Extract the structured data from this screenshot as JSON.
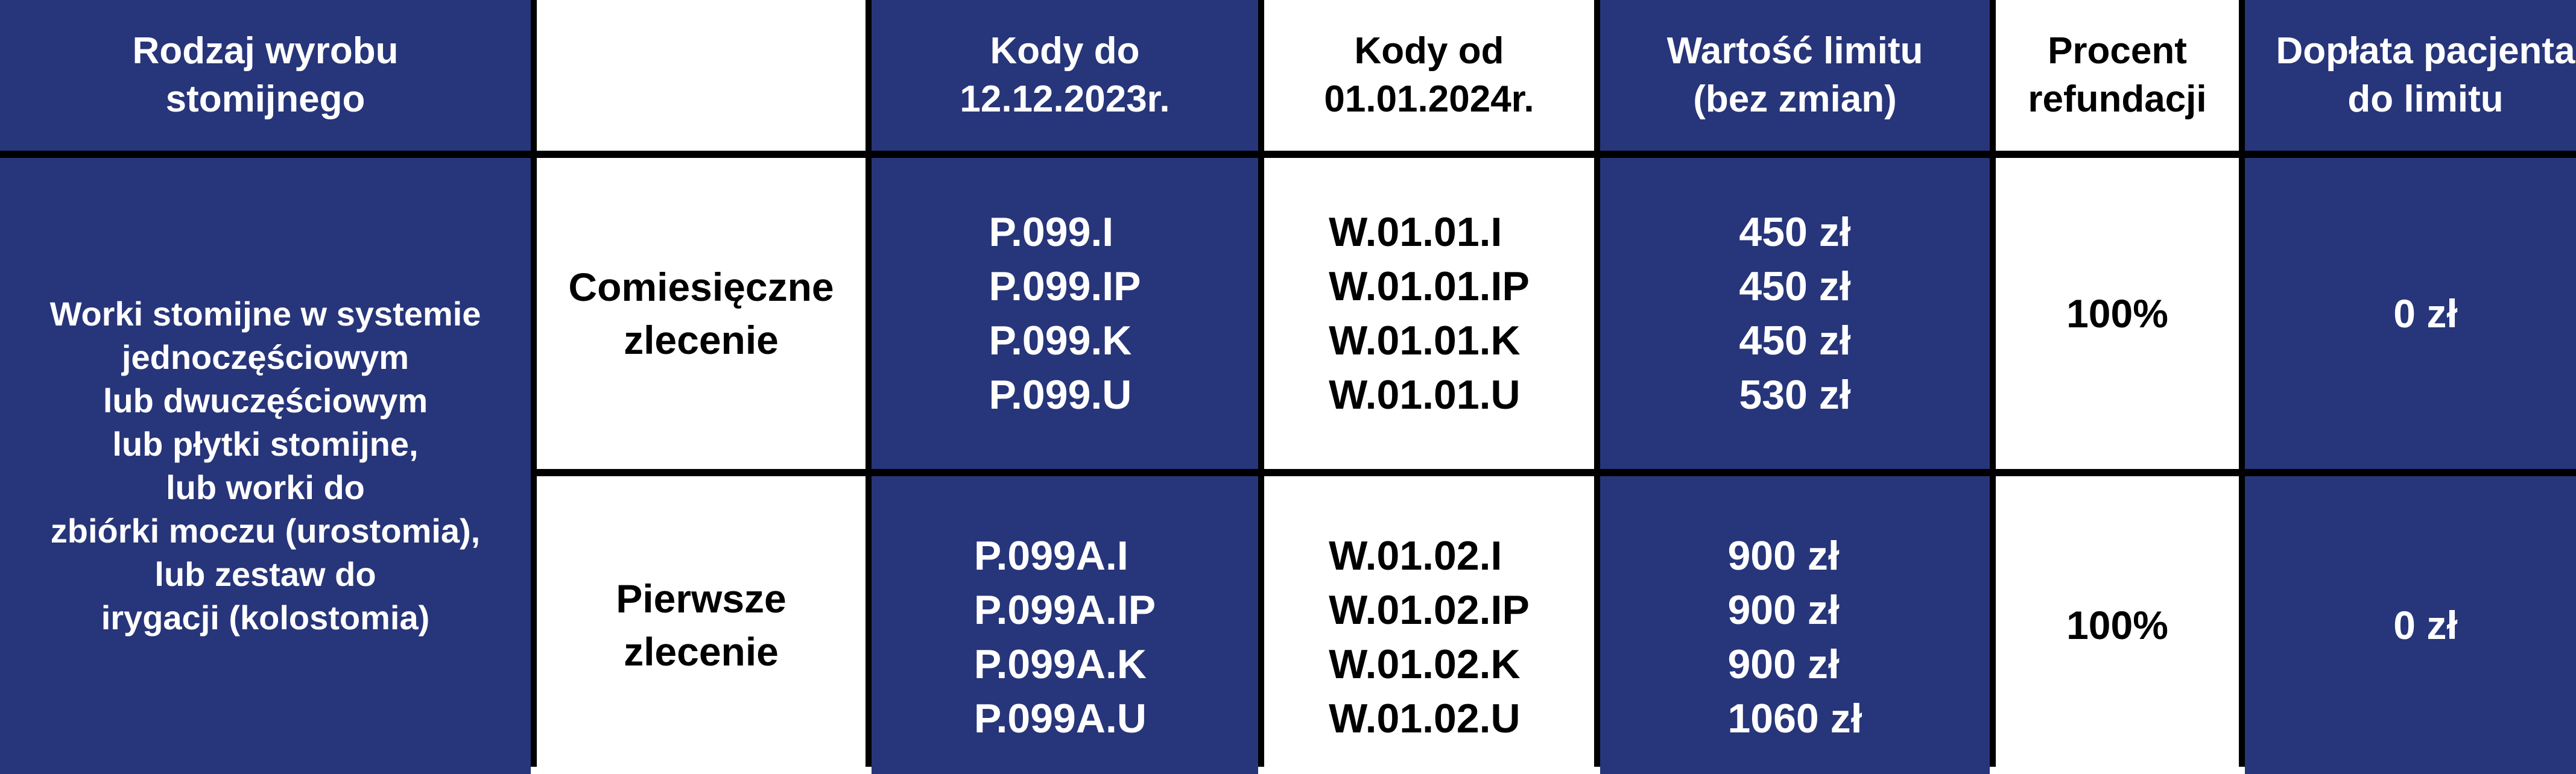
{
  "header": {
    "col1": [
      "Rodzaj wyrobu",
      "stomijnego"
    ],
    "col2": "",
    "col3": [
      "Kody do",
      "12.12.2023r."
    ],
    "col4": [
      "Kody od",
      "01.01.2024r."
    ],
    "col5": [
      "Wartość limitu",
      "(bez zmian)"
    ],
    "col6": [
      "Procent",
      "refundacji"
    ],
    "col7": [
      "Dopłata pacjenta",
      "do limitu"
    ]
  },
  "product_type": [
    "Worki stomijne w systemie",
    "jednoczęściowym",
    "lub dwuczęściowym",
    "lub płytki stomijne,",
    "lub worki do",
    "zbiórki moczu (urostomia),",
    "lub zestaw do",
    "irygacji (kolostomia)"
  ],
  "rows": [
    {
      "order": [
        "Comiesięczne",
        "zlecenie"
      ],
      "old_codes": [
        "P.099.I",
        "P.099.IP",
        "P.099.K",
        "P.099.U"
      ],
      "new_codes": [
        "W.01.01.I",
        "W.01.01.IP",
        "W.01.01.K",
        "W.01.01.U"
      ],
      "limits": [
        "450 zł",
        "450 zł",
        "450 zł",
        "530 zł"
      ],
      "refund": "100%",
      "copay": "0 zł"
    },
    {
      "order": [
        "Pierwsze",
        "zlecenie"
      ],
      "old_codes": [
        "P.099A.I",
        "P.099A.IP",
        "P.099A.K",
        "P.099A.U"
      ],
      "new_codes": [
        "W.01.02.I",
        "W.01.02.IP",
        "W.01.02.K",
        "W.01.02.U"
      ],
      "limits": [
        "900 zł",
        "900 zł",
        "900 zł",
        "1060 zł"
      ],
      "refund": "100%",
      "copay": "0 zł"
    }
  ],
  "colors": {
    "blue": "#27357a",
    "white": "#ffffff",
    "border": "#000000"
  }
}
